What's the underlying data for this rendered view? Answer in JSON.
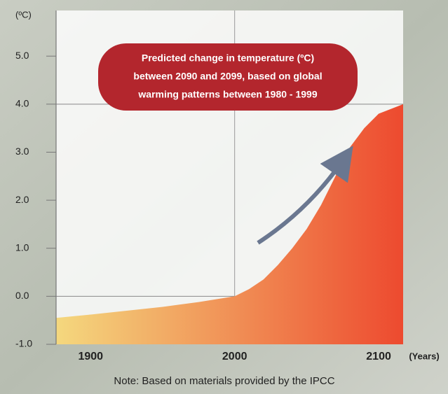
{
  "chart_data": {
    "type": "area",
    "title": [
      "Predicted change in temperature (ºC)",
      "between 2090 and 2099, based on global",
      "warming patterns between 1980 - 1999"
    ],
    "y_label": "(ºC)",
    "x_label": "(Years)",
    "note": "Note: Based on materials provided by the IPCC",
    "x": [
      1876,
      1900,
      1925,
      1950,
      1975,
      2000,
      2010,
      2020,
      2030,
      2040,
      2050,
      2060,
      2070,
      2080,
      2090,
      2100,
      2117
    ],
    "values": [
      -0.45,
      -0.38,
      -0.3,
      -0.22,
      -0.12,
      0.0,
      0.15,
      0.35,
      0.65,
      1.0,
      1.4,
      1.9,
      2.5,
      3.1,
      3.5,
      3.8,
      4.0
    ],
    "color": [
      "#f4d87e",
      "#ed4a2f"
    ],
    "xlim": [
      1876,
      2117
    ],
    "ylim": [
      -1,
      5.95
    ],
    "xticks": [
      1900,
      2000,
      2100
    ],
    "yticks": [
      {
        "value": -1,
        "label": "-1.0"
      },
      {
        "value": 0,
        "label": "0.0"
      },
      {
        "value": 1,
        "label": "1.0"
      },
      {
        "value": 2,
        "label": "2.0"
      },
      {
        "value": 3,
        "label": "3.0"
      },
      {
        "value": 4,
        "label": "4.0"
      },
      {
        "value": 5,
        "label": "5.0"
      }
    ],
    "hlines": [
      0,
      4
    ],
    "vlines": [
      2000
    ]
  }
}
